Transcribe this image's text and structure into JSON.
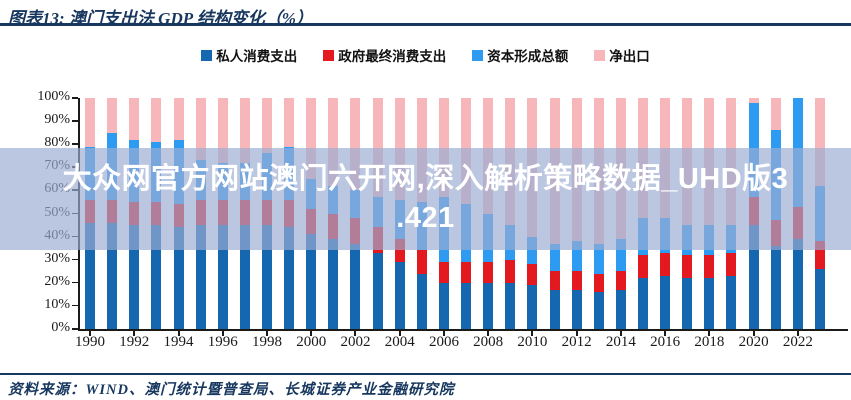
{
  "page": {
    "title": "图表13:  澳门支出法 GDP 结构变化（%）",
    "source_note": "资料来源：WIND、澳门统计暨普查局、长城证券产业金融研究院"
  },
  "watermark": {
    "line1": "大众网官方网站澳门六开网,深入解析策略数据_UHD版3",
    "line2": ".421"
  },
  "colors": {
    "title_text": "#17375e",
    "rule_line": "#17375e",
    "axis_text": "#1a1a1a",
    "watermark_bg": "rgba(155,172,210,0.68)",
    "watermark_text": "#ffffff",
    "private_consumption": "#1568af",
    "government_consumption": "#e3191f",
    "capital_formation": "#2e9bf2",
    "net_exports": "#f6b6ba"
  },
  "chart_data": {
    "type": "bar",
    "stacked": true,
    "title": "澳门支出法 GDP 结构变化（%）",
    "unit": "%",
    "ylim": [
      0,
      100
    ],
    "ytick_step": 10,
    "ytick_labels": [
      "0%",
      "10%",
      "20%",
      "30%",
      "40%",
      "50%",
      "60%",
      "70%",
      "80%",
      "90%",
      "100%"
    ],
    "grid": false,
    "legend_position": "top",
    "categories": [
      1990,
      1991,
      1992,
      1993,
      1994,
      1995,
      1996,
      1997,
      1998,
      1999,
      2000,
      2001,
      2002,
      2003,
      2004,
      2005,
      2006,
      2007,
      2008,
      2009,
      2010,
      2011,
      2012,
      2013,
      2014,
      2015,
      2016,
      2017,
      2018,
      2019,
      2020,
      2021,
      2022,
      2023
    ],
    "xticks": [
      1990,
      1992,
      1994,
      1996,
      1998,
      2000,
      2002,
      2004,
      2006,
      2008,
      2010,
      2012,
      2014,
      2016,
      2018,
      2020,
      2022
    ],
    "series": [
      {
        "name": "私人消费支出",
        "color": "#1568af",
        "values": [
          46,
          46,
          45,
          45,
          44,
          45,
          45,
          45,
          45,
          44,
          41,
          39,
          37,
          33,
          29,
          24,
          20,
          20,
          20,
          20,
          19,
          17,
          17,
          16,
          17,
          22,
          23,
          22,
          22,
          23,
          45,
          36,
          39,
          26
        ]
      },
      {
        "name": "政府最终消费支出",
        "color": "#e3191f",
        "values": [
          10,
          10,
          10,
          10,
          10,
          11,
          11,
          11,
          11,
          12,
          11,
          11,
          11,
          11,
          10,
          10,
          9,
          9,
          9,
          10,
          9,
          8,
          8,
          8,
          8,
          10,
          10,
          10,
          10,
          10,
          12,
          11,
          14,
          12
        ]
      },
      {
        "name": "资本形成总额",
        "color": "#2e9bf2",
        "values": [
          23,
          29,
          27,
          26,
          28,
          17,
          16,
          16,
          20,
          23,
          13,
          12,
          12,
          13,
          17,
          21,
          28,
          25,
          21,
          15,
          12,
          12,
          13,
          13,
          14,
          16,
          15,
          13,
          13,
          12,
          41,
          39,
          47,
          24
        ]
      },
      {
        "name": "净出口",
        "color": "#f6b6ba",
        "values": [
          21,
          15,
          18,
          19,
          18,
          27,
          28,
          28,
          24,
          21,
          35,
          38,
          40,
          43,
          44,
          45,
          43,
          46,
          50,
          55,
          60,
          63,
          62,
          63,
          61,
          52,
          52,
          55,
          55,
          55,
          2,
          14,
          0,
          38
        ]
      }
    ]
  }
}
